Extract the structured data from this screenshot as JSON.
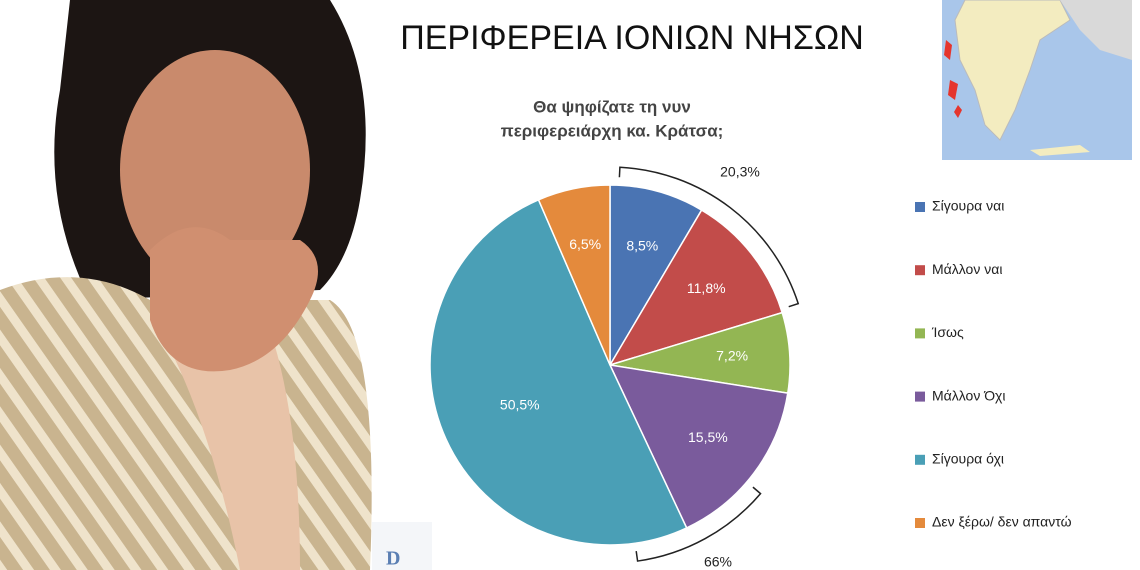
{
  "chart_data": {
    "type": "pie",
    "title": "ΠΕΡΙΦΕΡΕΙΑ ΙΟΝΙΩΝ ΝΗΣΩΝ",
    "subtitle": [
      "Θα ψηφίζατε τη νυν",
      "περιφερειάρχη κα. Κράτσα;"
    ],
    "categories": [
      "Σίγουρα ναι",
      "Μάλλον ναι",
      "Ίσως",
      "Μάλλον Όχι",
      "Σίγουρα όχι",
      "Δεν ξέρω/ δεν απαντώ"
    ],
    "values": [
      8.5,
      11.8,
      7.2,
      15.5,
      50.5,
      6.5
    ],
    "value_labels": [
      "8,5%",
      "11,8%",
      "7,2%",
      "15,5%",
      "50,5%",
      "6,5%"
    ],
    "colors": [
      "#4a74b3",
      "#c24c4a",
      "#93b653",
      "#7a5b9c",
      "#4a9fb6",
      "#e48a3c"
    ],
    "annotations": [
      {
        "value": 20.3,
        "label": "20,3%"
      },
      {
        "value": 66,
        "label": "66%"
      }
    ],
    "legend": "right",
    "logo_text": "D"
  }
}
